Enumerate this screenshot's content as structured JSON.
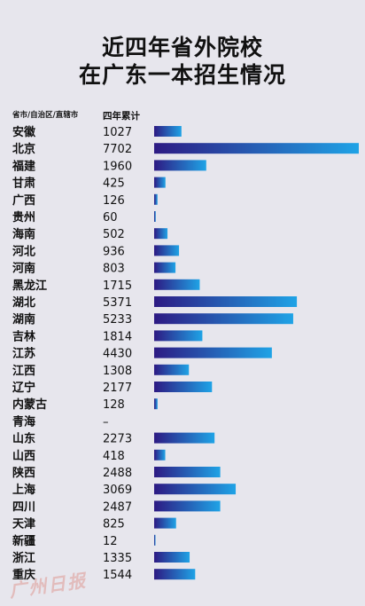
{
  "title": {
    "line1": "近四年省外院校",
    "line2": "在广东一本招生情况"
  },
  "header": {
    "region": "省市/自治区/直辖市",
    "total": "四年累计"
  },
  "watermark": "广州日报",
  "chart_data": {
    "type": "bar",
    "orientation": "horizontal",
    "categories": [
      "安徽",
      "北京",
      "福建",
      "甘肃",
      "广西",
      "贵州",
      "海南",
      "河北",
      "河南",
      "黑龙江",
      "湖北",
      "湖南",
      "吉林",
      "江苏",
      "江西",
      "辽宁",
      "内蒙古",
      "青海",
      "山东",
      "山西",
      "陕西",
      "上海",
      "四川",
      "天津",
      "新疆",
      "浙江",
      "重庆"
    ],
    "labels": [
      "1027",
      "7702",
      "1960",
      "425",
      "126",
      "60",
      "502",
      "936",
      "803",
      "1715",
      "5371",
      "5233",
      "1814",
      "4430",
      "1308",
      "2177",
      "128",
      "–",
      "2273",
      "418",
      "2488",
      "3069",
      "2487",
      "825",
      "12",
      "1335",
      "1544"
    ],
    "values": [
      1027,
      7702,
      1960,
      425,
      126,
      60,
      502,
      936,
      803,
      1715,
      5371,
      5233,
      1814,
      4430,
      1308,
      2177,
      128,
      0,
      2273,
      418,
      2488,
      3069,
      2487,
      825,
      12,
      1335,
      1544
    ],
    "xlim": [
      0,
      7702
    ],
    "colors": {
      "start": "#2d1a83",
      "end": "#1fa3e6"
    }
  }
}
